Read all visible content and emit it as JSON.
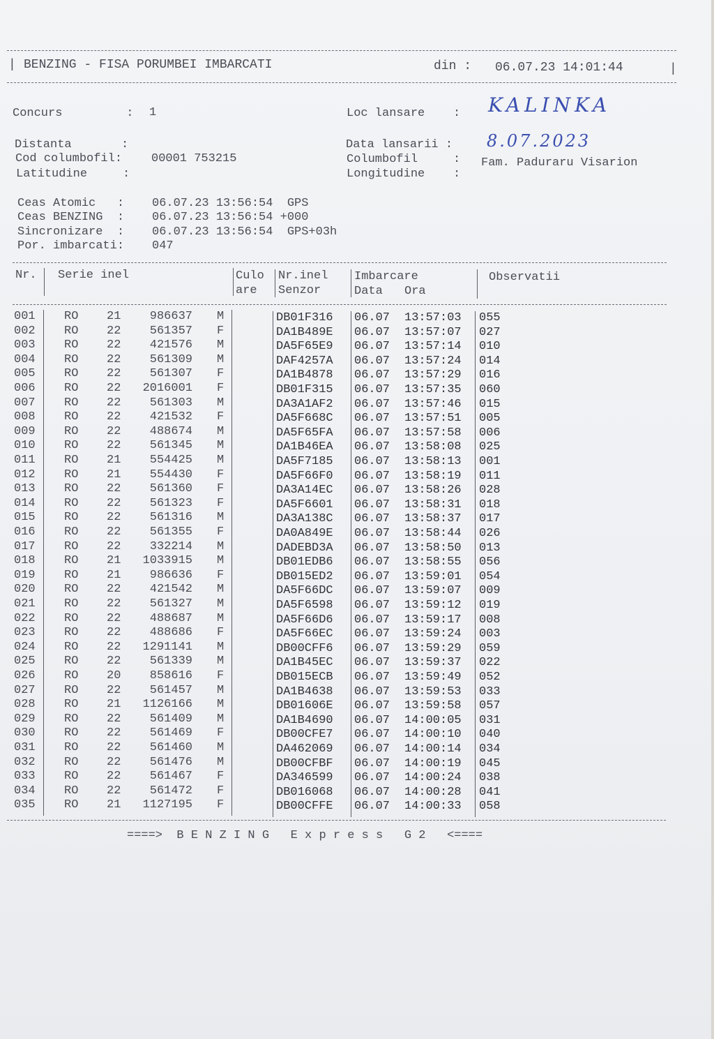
{
  "header": {
    "title": "BENZING - FISA PORUMBEI IMBARCATI",
    "din_label": "din :",
    "din_value": "06.07.23 14:01:44"
  },
  "info": {
    "concurs_label": "Concurs         :",
    "concurs_value": "1",
    "loc_label": "Loc lansare    :",
    "loc_value": "KALINKA",
    "distanta_label": "Distanta       :",
    "data_lansarii_label": "Data lansarii :",
    "data_lansarii_value": "8.07.2023",
    "cod_label": "Cod columbofil:",
    "cod_value": "00001 753215",
    "columbofil_label": "Columbofil     :",
    "columbofil_value": "Fam. Paduraru Visarion",
    "latitudine_label": "Latitudine     :",
    "longitudine_label": "Longitudine    :"
  },
  "clocks": {
    "atomic_label": "Ceas Atomic   :",
    "atomic_value": "06.07.23 13:56:54  GPS",
    "benzing_label": "Ceas BENZING  :",
    "benzing_value": "06.07.23 13:56:54 +000",
    "sync_label": "Sincronizare  :",
    "sync_value": "06.07.23 13:56:54  GPS+03h",
    "por_label": "Por. imbarcati:",
    "por_value": "047"
  },
  "table": {
    "headers": {
      "nr": "Nr.",
      "serie": "Serie inel",
      "culo1": "Culo",
      "culo2": "are",
      "nrinel1": "Nr.inel",
      "nrinel2": "Senzor",
      "imb1": "Imbarcare",
      "imb_data": "Data",
      "imb_ora": "Ora",
      "obs": "Observatii"
    },
    "rows": [
      [
        "001",
        "RO",
        "21",
        "986637",
        "M",
        "DB01F316",
        "06.07",
        "13:57:03",
        "055"
      ],
      [
        "002",
        "RO",
        "22",
        "561357",
        "F",
        "DA1B489E",
        "06.07",
        "13:57:07",
        "027"
      ],
      [
        "003",
        "RO",
        "22",
        "421576",
        "M",
        "DA5F65E9",
        "06.07",
        "13:57:14",
        "010"
      ],
      [
        "004",
        "RO",
        "22",
        "561309",
        "M",
        "DAF4257A",
        "06.07",
        "13:57:24",
        "014"
      ],
      [
        "005",
        "RO",
        "22",
        "561307",
        "F",
        "DA1B4878",
        "06.07",
        "13:57:29",
        "016"
      ],
      [
        "006",
        "RO",
        "22",
        "2016001",
        "F",
        "DB01F315",
        "06.07",
        "13:57:35",
        "060"
      ],
      [
        "007",
        "RO",
        "22",
        "561303",
        "M",
        "DA3A1AF2",
        "06.07",
        "13:57:46",
        "015"
      ],
      [
        "008",
        "RO",
        "22",
        "421532",
        "F",
        "DA5F668C",
        "06.07",
        "13:57:51",
        "005"
      ],
      [
        "009",
        "RO",
        "22",
        "488674",
        "M",
        "DA5F65FA",
        "06.07",
        "13:57:58",
        "006"
      ],
      [
        "010",
        "RO",
        "22",
        "561345",
        "M",
        "DA1B46EA",
        "06.07",
        "13:58:08",
        "025"
      ],
      [
        "011",
        "RO",
        "21",
        "554425",
        "M",
        "DA5F7185",
        "06.07",
        "13:58:13",
        "001"
      ],
      [
        "012",
        "RO",
        "21",
        "554430",
        "F",
        "DA5F66F0",
        "06.07",
        "13:58:19",
        "011"
      ],
      [
        "013",
        "RO",
        "22",
        "561360",
        "F",
        "DA3A14EC",
        "06.07",
        "13:58:26",
        "028"
      ],
      [
        "014",
        "RO",
        "22",
        "561323",
        "F",
        "DA5F6601",
        "06.07",
        "13:58:31",
        "018"
      ],
      [
        "015",
        "RO",
        "22",
        "561316",
        "M",
        "DA3A138C",
        "06.07",
        "13:58:37",
        "017"
      ],
      [
        "016",
        "RO",
        "22",
        "561355",
        "F",
        "DA0A849E",
        "06.07",
        "13:58:44",
        "026"
      ],
      [
        "017",
        "RO",
        "22",
        "332214",
        "M",
        "DADEBD3A",
        "06.07",
        "13:58:50",
        "013"
      ],
      [
        "018",
        "RO",
        "21",
        "1033915",
        "M",
        "DB01EDB6",
        "06.07",
        "13:58:55",
        "056"
      ],
      [
        "019",
        "RO",
        "21",
        "986636",
        "F",
        "DB015ED2",
        "06.07",
        "13:59:01",
        "054"
      ],
      [
        "020",
        "RO",
        "22",
        "421542",
        "M",
        "DA5F66DC",
        "06.07",
        "13:59:07",
        "009"
      ],
      [
        "021",
        "RO",
        "22",
        "561327",
        "M",
        "DA5F6598",
        "06.07",
        "13:59:12",
        "019"
      ],
      [
        "022",
        "RO",
        "22",
        "488687",
        "M",
        "DA5F66D6",
        "06.07",
        "13:59:17",
        "008"
      ],
      [
        "023",
        "RO",
        "22",
        "488686",
        "F",
        "DA5F66EC",
        "06.07",
        "13:59:24",
        "003"
      ],
      [
        "024",
        "RO",
        "22",
        "1291141",
        "M",
        "DB00CFF6",
        "06.07",
        "13:59:29",
        "059"
      ],
      [
        "025",
        "RO",
        "22",
        "561339",
        "M",
        "DA1B45EC",
        "06.07",
        "13:59:37",
        "022"
      ],
      [
        "026",
        "RO",
        "20",
        "858616",
        "F",
        "DB015ECB",
        "06.07",
        "13:59:49",
        "052"
      ],
      [
        "027",
        "RO",
        "22",
        "561457",
        "M",
        "DA1B4638",
        "06.07",
        "13:59:53",
        "033"
      ],
      [
        "028",
        "RO",
        "21",
        "1126166",
        "M",
        "DB01606E",
        "06.07",
        "13:59:58",
        "057"
      ],
      [
        "029",
        "RO",
        "22",
        "561409",
        "M",
        "DA1B4690",
        "06.07",
        "14:00:05",
        "031"
      ],
      [
        "030",
        "RO",
        "22",
        "561469",
        "F",
        "DB00CFE7",
        "06.07",
        "14:00:10",
        "040"
      ],
      [
        "031",
        "RO",
        "22",
        "561460",
        "M",
        "DA462069",
        "06.07",
        "14:00:14",
        "034"
      ],
      [
        "032",
        "RO",
        "22",
        "561476",
        "M",
        "DB00CFBF",
        "06.07",
        "14:00:19",
        "045"
      ],
      [
        "033",
        "RO",
        "22",
        "561467",
        "F",
        "DA346599",
        "06.07",
        "14:00:24",
        "038"
      ],
      [
        "034",
        "RO",
        "22",
        "561472",
        "F",
        "DB016068",
        "06.07",
        "14:00:28",
        "041"
      ],
      [
        "035",
        "RO",
        "21",
        "1127195",
        "F",
        "DB00CFFE",
        "06.07",
        "14:00:33",
        "058"
      ]
    ]
  },
  "footer": {
    "text": "====>  B E N Z I N G   E x p r e s s   G 2   <===="
  }
}
